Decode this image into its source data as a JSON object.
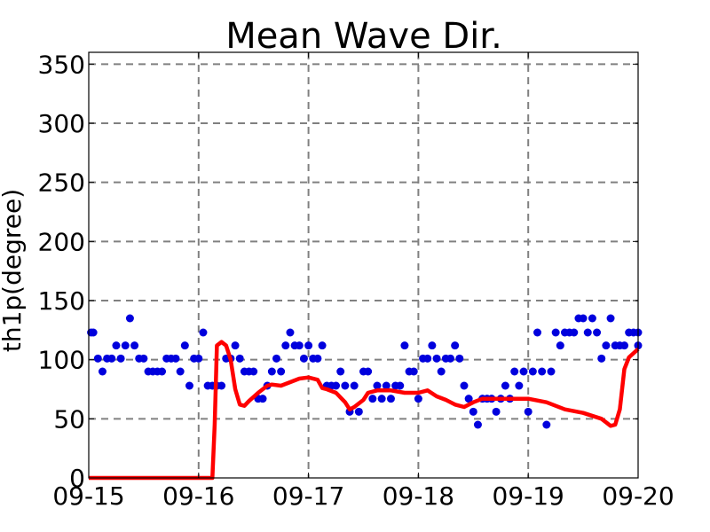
{
  "chart_data": {
    "type": "scatter",
    "title": "Mean Wave Dir.",
    "xlabel": "",
    "ylabel": "th1p(degree)",
    "grid": true,
    "ylim": [
      0,
      360
    ],
    "xlim": [
      "09-15",
      "09-20"
    ],
    "x_tick_labels": [
      "09-15",
      "09-16",
      "09-17",
      "09-18",
      "09-19",
      "09-20"
    ],
    "y_ticks": [
      0,
      50,
      100,
      150,
      200,
      250,
      300,
      350
    ],
    "colors": {
      "points": "#0000dd",
      "line": "#ff0000",
      "grid": "#808080"
    },
    "series": [
      {
        "type": "scatter",
        "points": [
          [
            "09-15 00:30",
            123
          ],
          [
            "09-15 01:00",
            123
          ],
          [
            "09-15 02:00",
            101
          ],
          [
            "09-15 03:00",
            90
          ],
          [
            "09-15 04:00",
            101
          ],
          [
            "09-15 05:00",
            101
          ],
          [
            "09-15 06:00",
            112
          ],
          [
            "09-15 07:00",
            101
          ],
          [
            "09-15 08:00",
            112
          ],
          [
            "09-15 09:00",
            135
          ],
          [
            "09-15 10:00",
            112
          ],
          [
            "09-15 11:00",
            101
          ],
          [
            "09-15 12:00",
            101
          ],
          [
            "09-15 13:00",
            90
          ],
          [
            "09-15 14:00",
            90
          ],
          [
            "09-15 15:00",
            90
          ],
          [
            "09-15 16:00",
            90
          ],
          [
            "09-15 17:00",
            101
          ],
          [
            "09-15 18:00",
            101
          ],
          [
            "09-15 19:00",
            101
          ],
          [
            "09-15 20:00",
            90
          ],
          [
            "09-15 21:00",
            112
          ],
          [
            "09-15 22:00",
            78
          ],
          [
            "09-15 23:00",
            101
          ],
          [
            "09-16 00:00",
            101
          ],
          [
            "09-16 01:00",
            123
          ],
          [
            "09-16 02:00",
            78
          ],
          [
            "09-16 03:00",
            78
          ],
          [
            "09-16 04:00",
            78
          ],
          [
            "09-16 05:00",
            78
          ],
          [
            "09-16 06:00",
            101
          ],
          [
            "09-16 07:00",
            101
          ],
          [
            "09-16 08:00",
            112
          ],
          [
            "09-16 09:00",
            101
          ],
          [
            "09-16 10:00",
            90
          ],
          [
            "09-16 11:00",
            90
          ],
          [
            "09-16 12:00",
            90
          ],
          [
            "09-16 13:00",
            67
          ],
          [
            "09-16 14:00",
            67
          ],
          [
            "09-16 15:00",
            78
          ],
          [
            "09-16 16:00",
            90
          ],
          [
            "09-16 17:00",
            101
          ],
          [
            "09-16 18:00",
            90
          ],
          [
            "09-16 19:00",
            112
          ],
          [
            "09-16 20:00",
            123
          ],
          [
            "09-16 21:00",
            112
          ],
          [
            "09-16 22:00",
            112
          ],
          [
            "09-16 23:00",
            101
          ],
          [
            "09-17 00:00",
            112
          ],
          [
            "09-17 01:00",
            101
          ],
          [
            "09-17 02:00",
            101
          ],
          [
            "09-17 03:00",
            112
          ],
          [
            "09-17 04:00",
            78
          ],
          [
            "09-17 05:00",
            78
          ],
          [
            "09-17 06:00",
            78
          ],
          [
            "09-17 07:00",
            90
          ],
          [
            "09-17 08:00",
            78
          ],
          [
            "09-17 09:00",
            56
          ],
          [
            "09-17 10:00",
            78
          ],
          [
            "09-17 11:00",
            56
          ],
          [
            "09-17 12:00",
            90
          ],
          [
            "09-17 13:00",
            90
          ],
          [
            "09-17 14:00",
            67
          ],
          [
            "09-17 15:00",
            78
          ],
          [
            "09-17 16:00",
            67
          ],
          [
            "09-17 17:00",
            78
          ],
          [
            "09-17 18:00",
            67
          ],
          [
            "09-17 19:00",
            78
          ],
          [
            "09-17 20:00",
            78
          ],
          [
            "09-17 21:00",
            112
          ],
          [
            "09-17 22:00",
            90
          ],
          [
            "09-17 23:00",
            90
          ],
          [
            "09-18 00:00",
            67
          ],
          [
            "09-18 01:00",
            101
          ],
          [
            "09-18 02:00",
            101
          ],
          [
            "09-18 03:00",
            112
          ],
          [
            "09-18 04:00",
            101
          ],
          [
            "09-18 05:00",
            90
          ],
          [
            "09-18 06:00",
            101
          ],
          [
            "09-18 07:00",
            101
          ],
          [
            "09-18 08:00",
            112
          ],
          [
            "09-18 09:00",
            101
          ],
          [
            "09-18 10:00",
            78
          ],
          [
            "09-18 11:00",
            67
          ],
          [
            "09-18 12:00",
            56
          ],
          [
            "09-18 13:00",
            45
          ],
          [
            "09-18 14:00",
            67
          ],
          [
            "09-18 15:00",
            67
          ],
          [
            "09-18 16:00",
            67
          ],
          [
            "09-18 17:00",
            56
          ],
          [
            "09-18 18:00",
            67
          ],
          [
            "09-18 19:00",
            78
          ],
          [
            "09-18 20:00",
            67
          ],
          [
            "09-18 21:00",
            90
          ],
          [
            "09-18 22:00",
            78
          ],
          [
            "09-18 23:00",
            90
          ],
          [
            "09-19 00:00",
            56
          ],
          [
            "09-19 01:00",
            90
          ],
          [
            "09-19 02:00",
            123
          ],
          [
            "09-19 03:00",
            90
          ],
          [
            "09-19 04:00",
            45
          ],
          [
            "09-19 05:00",
            90
          ],
          [
            "09-19 06:00",
            123
          ],
          [
            "09-19 07:00",
            112
          ],
          [
            "09-19 08:00",
            123
          ],
          [
            "09-19 09:00",
            123
          ],
          [
            "09-19 10:00",
            123
          ],
          [
            "09-19 11:00",
            135
          ],
          [
            "09-19 12:00",
            135
          ],
          [
            "09-19 13:00",
            123
          ],
          [
            "09-19 14:00",
            135
          ],
          [
            "09-19 15:00",
            123
          ],
          [
            "09-19 16:00",
            101
          ],
          [
            "09-19 17:00",
            112
          ],
          [
            "09-19 18:00",
            135
          ],
          [
            "09-19 19:00",
            112
          ],
          [
            "09-19 20:00",
            112
          ],
          [
            "09-19 21:00",
            112
          ],
          [
            "09-19 22:00",
            123
          ],
          [
            "09-19 23:00",
            123
          ],
          [
            "09-20 00:00",
            112
          ],
          [
            "09-20 00:00",
            123
          ]
        ]
      },
      {
        "type": "line",
        "points": [
          [
            "09-15 00:00",
            0
          ],
          [
            "09-16 03:00",
            0
          ],
          [
            "09-16 03:30",
            45
          ],
          [
            "09-16 04:00",
            112
          ],
          [
            "09-16 05:00",
            115
          ],
          [
            "09-16 06:00",
            112
          ],
          [
            "09-16 07:00",
            100
          ],
          [
            "09-16 08:00",
            75
          ],
          [
            "09-16 09:00",
            62
          ],
          [
            "09-16 10:00",
            61
          ],
          [
            "09-16 11:00",
            65
          ],
          [
            "09-16 13:00",
            72
          ],
          [
            "09-16 15:00",
            78
          ],
          [
            "09-16 16:00",
            79
          ],
          [
            "09-16 18:00",
            78
          ],
          [
            "09-16 20:00",
            81
          ],
          [
            "09-16 22:00",
            84
          ],
          [
            "09-17 00:00",
            85
          ],
          [
            "09-17 02:00",
            83
          ],
          [
            "09-17 03:00",
            76
          ],
          [
            "09-17 04:00",
            75
          ],
          [
            "09-17 06:00",
            72
          ],
          [
            "09-17 07:00",
            68
          ],
          [
            "09-17 08:00",
            64
          ],
          [
            "09-17 09:00",
            58
          ],
          [
            "09-17 10:00",
            60
          ],
          [
            "09-17 12:00",
            66
          ],
          [
            "09-17 13:00",
            72
          ],
          [
            "09-17 15:00",
            74
          ],
          [
            "09-17 18:00",
            74
          ],
          [
            "09-17 21:00",
            72
          ],
          [
            "09-18 00:00",
            72
          ],
          [
            "09-18 02:00",
            74
          ],
          [
            "09-18 04:00",
            69
          ],
          [
            "09-18 06:00",
            66
          ],
          [
            "09-18 08:00",
            62
          ],
          [
            "09-18 10:00",
            60
          ],
          [
            "09-18 12:00",
            64
          ],
          [
            "09-18 14:00",
            67
          ],
          [
            "09-18 18:00",
            67
          ],
          [
            "09-19 00:00",
            67
          ],
          [
            "09-19 04:00",
            64
          ],
          [
            "09-19 08:00",
            58
          ],
          [
            "09-19 12:00",
            55
          ],
          [
            "09-19 16:00",
            50
          ],
          [
            "09-19 17:00",
            47
          ],
          [
            "09-19 18:00",
            44
          ],
          [
            "09-19 19:00",
            45
          ],
          [
            "09-19 20:00",
            58
          ],
          [
            "09-19 21:00",
            92
          ],
          [
            "09-19 22:00",
            102
          ],
          [
            "09-20 00:00",
            109
          ]
        ]
      }
    ]
  }
}
